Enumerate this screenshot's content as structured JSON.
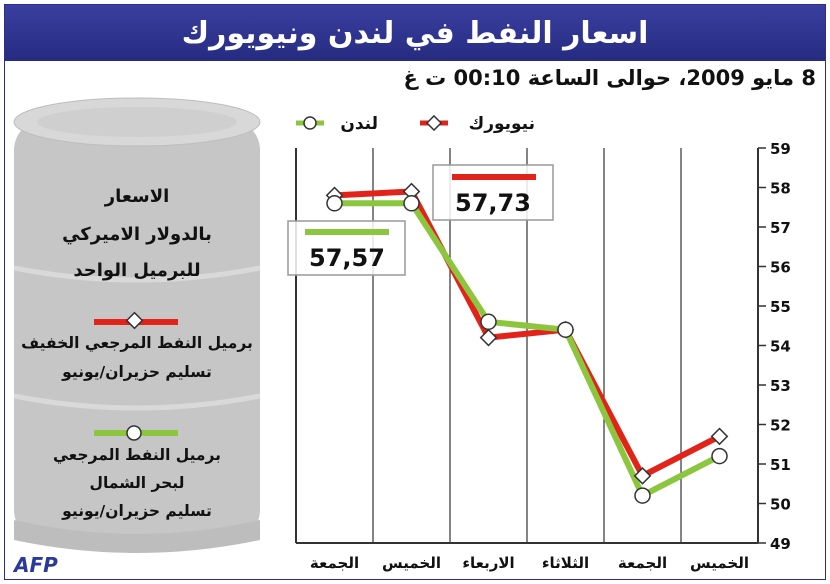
{
  "title": "اسعار النفط في لندن ونيويورك",
  "subtitle": "8 مايو 2009، حوالى الساعة 00:10 ت غ",
  "source": "AFP",
  "colors": {
    "newyork": "#e2231a",
    "london": "#8cc63f",
    "frame": "#2b2f8a"
  },
  "legend": {
    "newyork": "نيويورك",
    "london": "لندن"
  },
  "panel": {
    "heading_lines": [
      "الاسعار",
      "بالدولار الاميركي",
      "للبرميل الواحد"
    ],
    "ny_desc": [
      "برميل النفط المرجعي الخفيف",
      "تسليم حزيران/يونيو"
    ],
    "london_desc": [
      "برميل النفط المرجعي",
      "لبحر الشمال",
      "تسليم حزيران/يونيو"
    ]
  },
  "callouts": {
    "newyork": "57,73",
    "london": "57,57"
  },
  "chart_data": {
    "type": "line",
    "categories": [
      "الجمعة",
      "الخميس",
      "الاربعاء",
      "الثلاثاء",
      "الجمعة",
      "الخميس"
    ],
    "series": [
      {
        "name": "نيويورك",
        "values": [
          57.8,
          57.9,
          54.2,
          54.4,
          50.7,
          51.7
        ]
      },
      {
        "name": "لندن",
        "values": [
          57.6,
          57.6,
          54.6,
          54.4,
          50.2,
          51.2
        ]
      }
    ],
    "ylim": [
      49,
      59
    ],
    "yticks": [
      49,
      50,
      51,
      52,
      53,
      54,
      55,
      56,
      57,
      58,
      59
    ],
    "xlabel": "",
    "ylabel": ""
  }
}
